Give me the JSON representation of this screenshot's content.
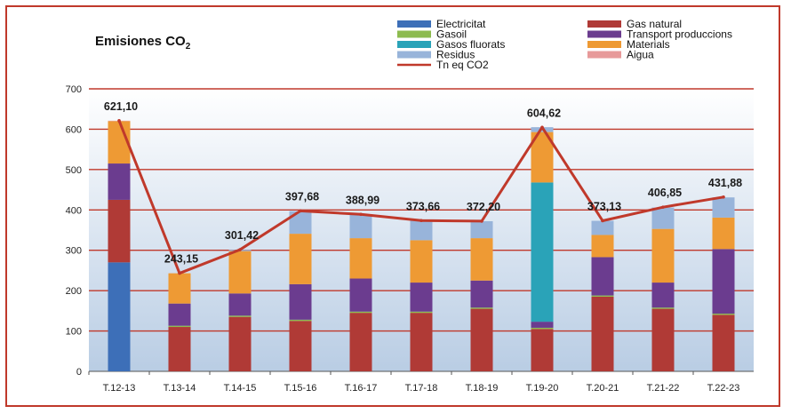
{
  "chart_data": {
    "type": "bar",
    "stacked": true,
    "title": "Emisiones CO",
    "title_subscript": "2",
    "categories": [
      "T.12-13",
      "T.13-14",
      "T.14-15",
      "T.15-16",
      "T.16-17",
      "T.17-18",
      "T.18-19",
      "T.19-20",
      "T.20-21",
      "T.21-22",
      "T.22-23"
    ],
    "ylim": [
      0,
      700
    ],
    "yticks": [
      0,
      100,
      200,
      300,
      400,
      500,
      600,
      700
    ],
    "grid": true,
    "legend_position": "top-right",
    "series": [
      {
        "name": "Electricitat",
        "color": "#3d6fb8",
        "values": [
          270,
          0,
          0,
          0,
          0,
          0,
          0,
          0,
          0,
          0,
          0
        ]
      },
      {
        "name": "Gas natural",
        "color": "#b03a36",
        "values": [
          155,
          110,
          135,
          125,
          145,
          145,
          155,
          105,
          185,
          155,
          140
        ]
      },
      {
        "name": "Gasoil",
        "color": "#8dbb4f",
        "values": [
          0,
          3,
          3,
          3,
          3,
          3,
          3,
          3,
          3,
          3,
          3
        ]
      },
      {
        "name": "Transport produccions",
        "color": "#6b3c8f",
        "values": [
          90,
          55,
          55,
          88,
          82,
          72,
          67,
          15,
          95,
          62,
          160
        ]
      },
      {
        "name": "Gasos fluorats",
        "color": "#2aa3b8",
        "values": [
          0,
          0,
          0,
          0,
          0,
          0,
          0,
          345,
          0,
          0,
          0
        ]
      },
      {
        "name": "Materials",
        "color": "#ee9a34",
        "values": [
          105,
          75,
          105,
          125,
          100,
          105,
          105,
          125,
          55,
          133,
          78
        ]
      },
      {
        "name": "Residus",
        "color": "#98b4da",
        "values": [
          0,
          0,
          3,
          56,
          58,
          48,
          42,
          12,
          35,
          53,
          50
        ]
      },
      {
        "name": "Aigua",
        "color": "#e79a9a",
        "values": [
          1,
          0,
          0,
          0,
          0,
          0,
          0,
          0,
          0,
          0,
          0
        ]
      }
    ],
    "line_series": {
      "name": "Tn eq CO2",
      "color": "#c0392b",
      "values": [
        621.1,
        243.15,
        301.42,
        397.68,
        388.99,
        373.66,
        372.2,
        604.62,
        373.13,
        406.85,
        431.88
      ],
      "labels": [
        "621,10",
        "243,15",
        "301,42",
        "397,68",
        "388,99",
        "373,66",
        "372,20",
        "604,62",
        "373,13",
        "406,85",
        "431,88"
      ]
    }
  }
}
